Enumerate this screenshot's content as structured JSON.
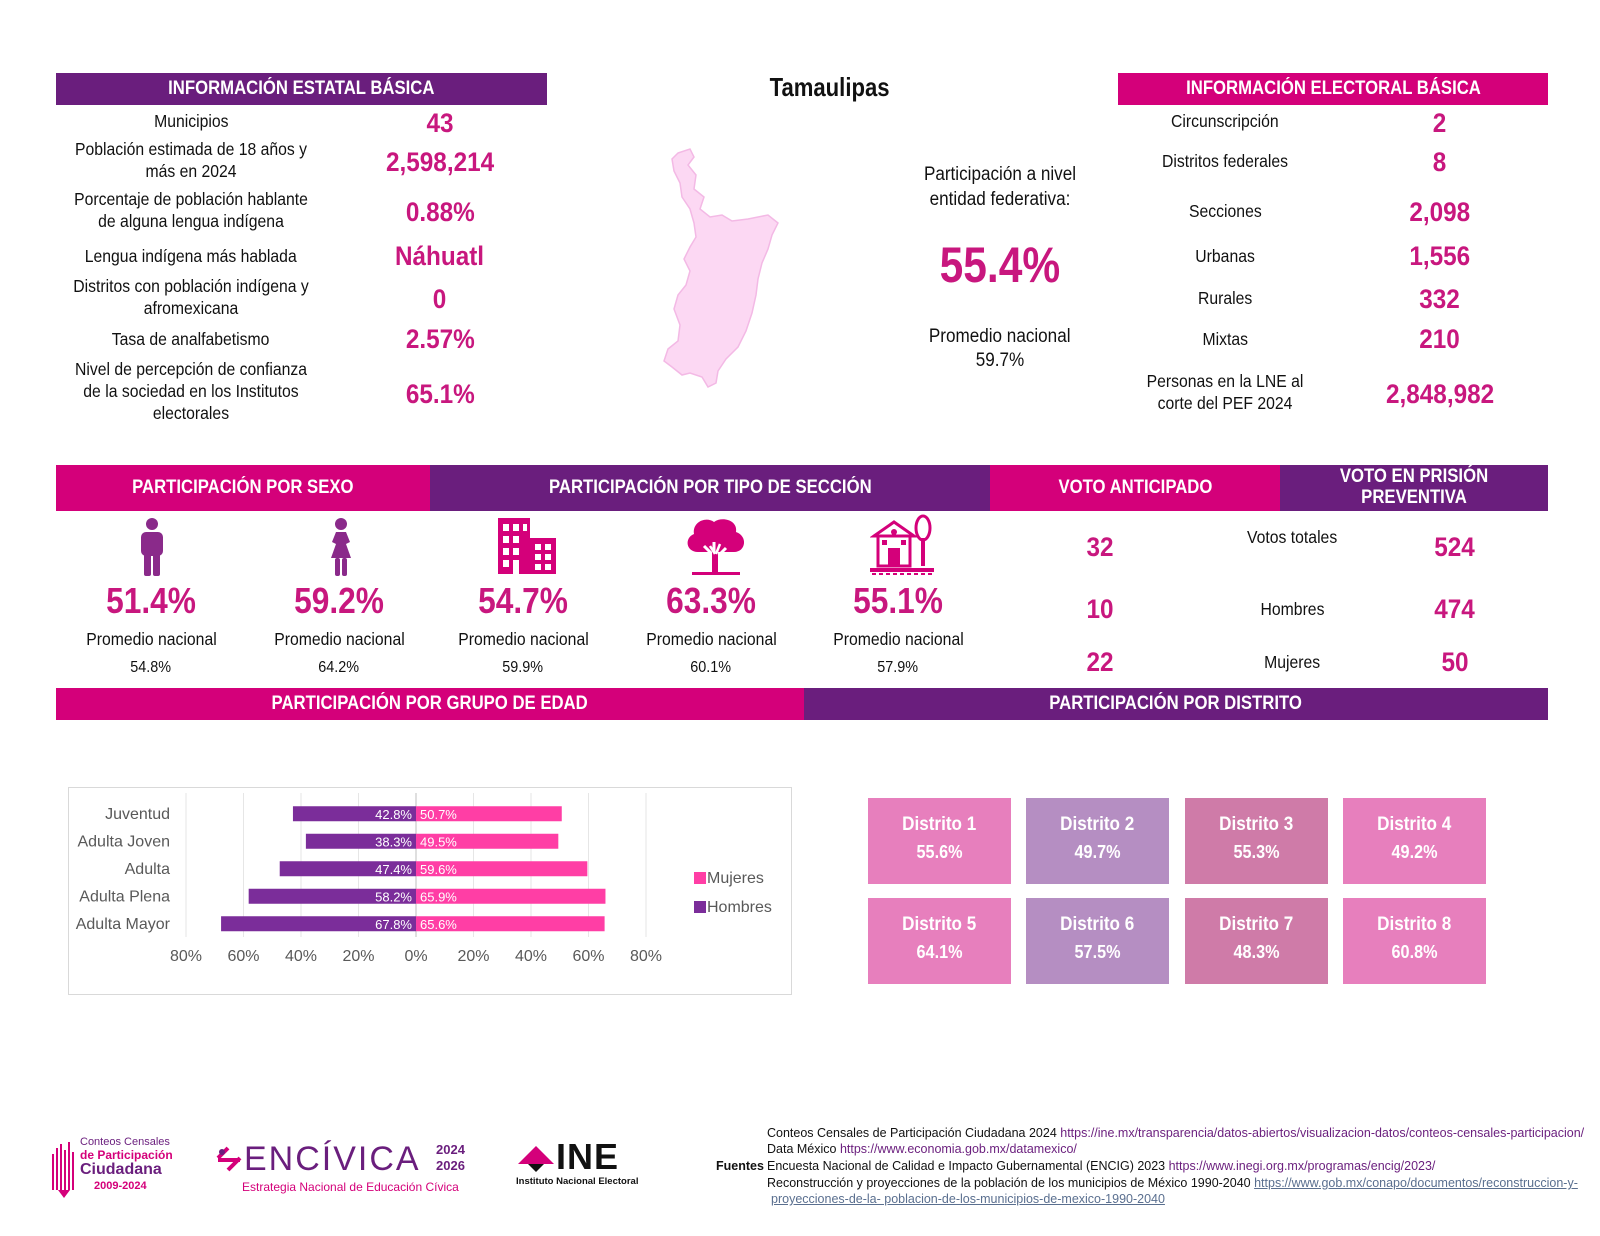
{
  "title": "Tamaulipas",
  "state_info": {
    "header": "INFORMACIÓN ESTATAL BÁSICA",
    "rows": [
      {
        "label": "Municipios",
        "value": "43"
      },
      {
        "label": "Población estimada de 18 años y más en 2024",
        "value": "2,598,214"
      },
      {
        "label": "Porcentaje de población hablante de alguna lengua indígena",
        "value": "0.88%"
      },
      {
        "label": "Lengua indígena más hablada",
        "value": "Náhuatl"
      },
      {
        "label": "Distritos con población indígena y afromexicana",
        "value": "0"
      },
      {
        "label": "Tasa de analfabetismo",
        "value": "2.57%"
      },
      {
        "label": "Nivel de percepción de confianza de la sociedad en los Institutos electorales",
        "value": "65.1%"
      }
    ]
  },
  "participation": {
    "label": "Participación a nivel entidad federativa:",
    "value": "55.4%",
    "national_label": "Promedio nacional",
    "national_value": "59.7%"
  },
  "electoral_info": {
    "header": "INFORMACIÓN ELECTORAL BÁSICA",
    "rows": [
      {
        "label": "Circunscripción",
        "value": "2"
      },
      {
        "label": "Distritos federales",
        "value": "8"
      },
      {
        "label": "Secciones",
        "value": "2,098"
      },
      {
        "label": "Urbanas",
        "value": "1,556"
      },
      {
        "label": "Rurales",
        "value": "332"
      },
      {
        "label": "Mixtas",
        "value": "210"
      },
      {
        "label": "Personas en la LNE al corte del PEF 2024",
        "value": "2,848,982"
      }
    ]
  },
  "section_headers": {
    "sexo": "PARTICIPACIÓN POR SEXO",
    "tipo": "PARTICIPACIÓN POR TIPO DE SECCIÓN",
    "anticipado": "VOTO ANTICIPADO",
    "prision": "VOTO EN PRISIÓN PREVENTIVA",
    "edad": "PARTICIPACIÓN POR GRUPO DE EDAD",
    "distrito": "PARTICIPACIÓN POR DISTRITO"
  },
  "indicators": [
    {
      "icon": "man-icon",
      "value": "51.4%",
      "label": "Promedio nacional",
      "national": "54.8%"
    },
    {
      "icon": "woman-icon",
      "value": "59.2%",
      "label": "Promedio nacional",
      "national": "64.2%"
    },
    {
      "icon": "urban-buildings-icon",
      "value": "54.7%",
      "label": "Promedio nacional",
      "national": "59.9%"
    },
    {
      "icon": "rural-tree-icon",
      "value": "63.3%",
      "label": "Promedio nacional",
      "national": "60.1%"
    },
    {
      "icon": "mixed-house-tree-icon",
      "value": "55.1%",
      "label": "Promedio nacional",
      "national": "57.9%"
    }
  ],
  "votes": [
    {
      "anticipado": "32",
      "label": "Votos totales",
      "prision": "524"
    },
    {
      "anticipado": "10",
      "label": "Hombres",
      "prision": "474"
    },
    {
      "anticipado": "22",
      "label": "Mujeres",
      "prision": "50"
    }
  ],
  "chart_data": {
    "type": "bar",
    "orientation": "horizontal",
    "categories": [
      "Juventud",
      "Adulta Joven",
      "Adulta",
      "Adulta Plena",
      "Adulta Mayor"
    ],
    "series": [
      {
        "name": "Mujeres",
        "color": "#ff3ea5",
        "values": [
          50.7,
          49.5,
          59.6,
          65.9,
          65.6
        ],
        "labels": [
          "50.7%",
          "49.5%",
          "59.6%",
          "65.9%",
          "65.6%"
        ]
      },
      {
        "name": "Hombres",
        "color": "#7b2d9a",
        "values": [
          42.8,
          38.3,
          47.4,
          58.2,
          67.8
        ],
        "labels": [
          "42.8%",
          "38.3%",
          "47.4%",
          "58.2%",
          "67.8%"
        ]
      }
    ],
    "xlim": [
      -80,
      80
    ],
    "xticks": [
      "80%",
      "60%",
      "40%",
      "20%",
      "0%",
      "20%",
      "40%",
      "60%",
      "80%"
    ],
    "legend": "right"
  },
  "districts": [
    {
      "name": "Distrito 1",
      "value": "55.6%",
      "color": "#e77fbd"
    },
    {
      "name": "Distrito 2",
      "value": "49.7%",
      "color": "#b58ec2"
    },
    {
      "name": "Distrito 3",
      "value": "55.3%",
      "color": "#cf7ba8"
    },
    {
      "name": "Distrito 4",
      "value": "49.2%",
      "color": "#e77fbd"
    },
    {
      "name": "Distrito 5",
      "value": "64.1%",
      "color": "#e77fbd"
    },
    {
      "name": "Distrito 6",
      "value": "57.5%",
      "color": "#b58ec2"
    },
    {
      "name": "Distrito 7",
      "value": "48.3%",
      "color": "#cf7ba8"
    },
    {
      "name": "Distrito 8",
      "value": "60.8%",
      "color": "#e77fbd"
    }
  ],
  "logos": {
    "conteos": {
      "line1": "Conteos Censales",
      "line2": "de Participación",
      "line3": "Ciudadana",
      "line4": "2009-2024"
    },
    "encivica": {
      "name": "ENCÍVICA",
      "years_top": "2024",
      "years_bottom": "2026",
      "subtitle": "Estrategia Nacional de Educación Cívica"
    },
    "ine": {
      "name": "INE",
      "subtitle": "Instituto Nacional Electoral"
    }
  },
  "sources": {
    "label": "Fuentes",
    "lines": [
      {
        "text": "Conteos Censales de Participación Ciudadana 2024 ",
        "url": "https://ine.mx/transparencia/datos-abiertos/visualizacion-datos/conteos-censales-participacion/"
      },
      {
        "text": "Data México ",
        "url": "https://www.economia.gob.mx/datamexico/"
      },
      {
        "text": "Encuesta Nacional de Calidad e Impacto Gubernamental (ENCIG) 2023 ",
        "url": "https://www.inegi.org.mx/programas/encig/2023/"
      },
      {
        "text": "Reconstrucción y proyecciones de la población de los municipios de México 1990-2040 ",
        "url": "https://www.gob.mx/conapo/documentos/reconstruccion-y-"
      },
      {
        "text": "",
        "url": "proyecciones-de-la-  poblacion-de-los-municipios-de-mexico-1990-2040"
      }
    ]
  }
}
